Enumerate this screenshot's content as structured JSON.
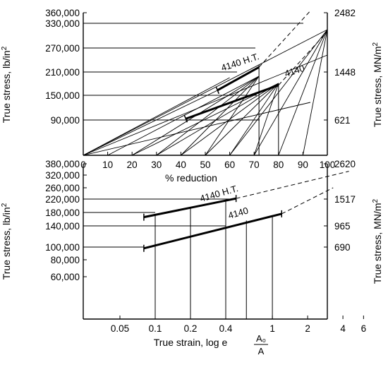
{
  "chart_data": [
    {
      "type": "line",
      "title": "",
      "xlabel": "% reduction",
      "ylabel_left": "True stress, lb/in²",
      "ylabel_right": "True stress, MN/m²",
      "xlim": [
        0,
        100
      ],
      "x_ticks": [
        "0",
        "10",
        "20",
        "30",
        "40",
        "50",
        "60",
        "70",
        "80",
        "90",
        "100"
      ],
      "y_ticks_left": [
        {
          "label": "90,000",
          "value": 90000
        },
        {
          "label": "150,000",
          "value": 150000
        },
        {
          "label": "210,000",
          "value": 210000
        },
        {
          "label": "270,000",
          "value": 270000
        },
        {
          "label": "330,000",
          "value": 330000
        },
        {
          "label": "360,000",
          "value": 360000
        }
      ],
      "y_ticks_right": [
        {
          "label": "621",
          "value": 621
        },
        {
          "label": "1448",
          "value": 1448
        },
        {
          "label": "2482",
          "value": 2482
        }
      ],
      "series": [
        {
          "name": "4140 H.T.",
          "x": [
            55,
            72
          ],
          "y": [
            163000,
            222000
          ],
          "extension_x": [
            72,
            93
          ],
          "extension_y": [
            222000,
            365000
          ]
        },
        {
          "name": "4140",
          "x": [
            42,
            80
          ],
          "y": [
            93000,
            176000
          ],
          "extension_x": [
            80,
            100
          ],
          "extension_y": [
            176000,
            310000
          ]
        }
      ]
    },
    {
      "type": "line",
      "title": "",
      "xlabel": "True strain, log e",
      "xlabel_fraction": {
        "numerator": "A₀",
        "denominator": "A"
      },
      "ylabel_left": "True stress, lb/in²",
      "ylabel_right": "True stress, MN/m²",
      "x_scale": "log",
      "y_scale": "log",
      "x_ticks": [
        {
          "label": "0.05",
          "value": 0.05
        },
        {
          "label": "0.1",
          "value": 0.1
        },
        {
          "label": "0.2",
          "value": 0.2
        },
        {
          "label": "0.4",
          "value": 0.4
        },
        {
          "label": "1",
          "value": 1
        },
        {
          "label": "2",
          "value": 2
        },
        {
          "label": "4",
          "value": 4
        },
        {
          "label": "6",
          "value": 6
        }
      ],
      "y_ticks_left": [
        {
          "label": "60,000",
          "value": 60000
        },
        {
          "label": "80,000",
          "value": 80000
        },
        {
          "label": "100,000",
          "value": 100000
        },
        {
          "label": "140,000",
          "value": 140000
        },
        {
          "label": "180,000",
          "value": 180000
        },
        {
          "label": "220,000",
          "value": 220000
        },
        {
          "label": "260,000",
          "value": 260000
        },
        {
          "label": "320,000",
          "value": 320000
        },
        {
          "label": "380,000",
          "value": 380000
        }
      ],
      "y_ticks_right": [
        {
          "label": "690",
          "value": 690
        },
        {
          "label": "965",
          "value": 965
        },
        {
          "label": "1517",
          "value": 1517
        },
        {
          "label": "2620",
          "value": 2620
        }
      ],
      "series": [
        {
          "name": "4140 H.T.",
          "x": [
            0.08,
            0.49
          ],
          "y": [
            166000,
            222000
          ],
          "extension_x": [
            0.49,
            4.5
          ],
          "extension_y": [
            222000,
            340000
          ]
        },
        {
          "name": "4140",
          "x": [
            0.08,
            1.2
          ],
          "y": [
            98000,
            176000
          ],
          "extension_x": [
            1.2,
            3.3
          ],
          "extension_y": [
            176000,
            260000
          ]
        }
      ]
    }
  ]
}
